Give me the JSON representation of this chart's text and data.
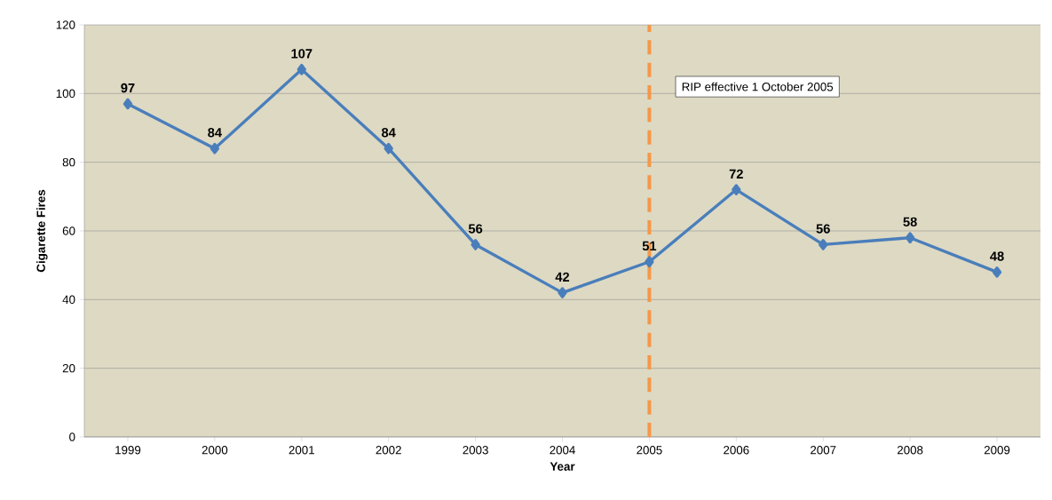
{
  "chart_data": {
    "type": "line",
    "xlabel": "Year",
    "ylabel": "Cigarette Fires",
    "categories": [
      "1999",
      "2000",
      "2001",
      "2002",
      "2003",
      "2004",
      "2005",
      "2006",
      "2007",
      "2008",
      "2009"
    ],
    "values": [
      97,
      84,
      107,
      84,
      56,
      42,
      51,
      72,
      56,
      58,
      48
    ],
    "color": "#4a7ebb",
    "ylim": [
      0,
      120
    ],
    "yticks": [
      0,
      20,
      40,
      60,
      80,
      100,
      120
    ],
    "grid": "y",
    "marker": "diamond",
    "line_style": "solid",
    "data_labels": true,
    "ref_lines": [
      {
        "axis": "x",
        "value": "2005",
        "label": "RIP effective 1 October 2005",
        "color": "#f79646",
        "line_style": "dashed"
      }
    ]
  }
}
